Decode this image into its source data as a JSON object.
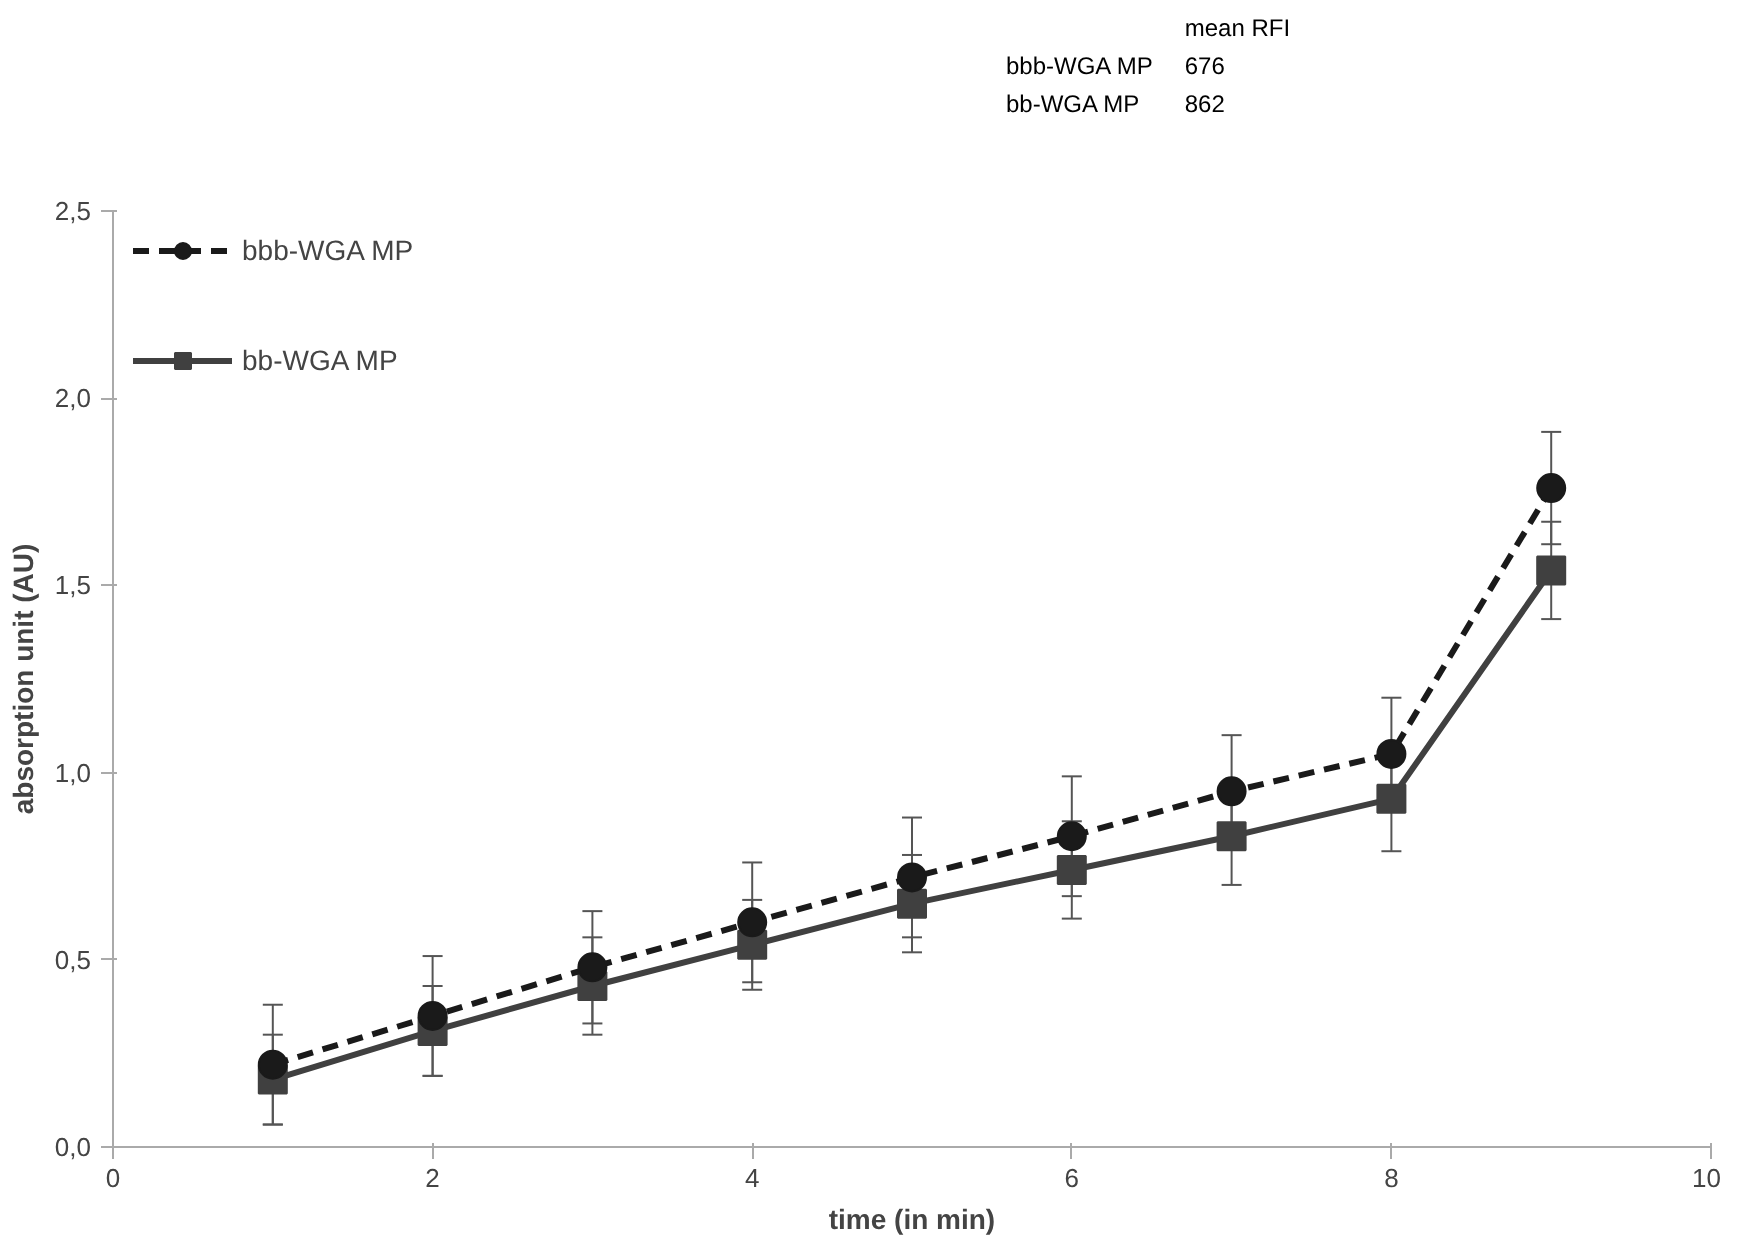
{
  "chart_data": {
    "type": "line",
    "xlabel": "time (in min)",
    "ylabel": "absorption unit (AU)",
    "x": [
      1,
      2,
      3,
      4,
      5,
      6,
      7,
      8,
      9
    ],
    "series": [
      {
        "name": "bbb-WGA MP",
        "color": "#1a1a1a",
        "marker": "circle",
        "line_style": "dashed",
        "values": [
          0.22,
          0.35,
          0.48,
          0.6,
          0.72,
          0.83,
          0.95,
          1.05,
          1.76
        ],
        "errors": [
          0.16,
          0.16,
          0.15,
          0.16,
          0.16,
          0.16,
          0.15,
          0.15,
          0.15
        ]
      },
      {
        "name": "bb-WGA MP",
        "color": "#404040",
        "marker": "square",
        "line_style": "solid",
        "values": [
          0.18,
          0.31,
          0.43,
          0.54,
          0.65,
          0.74,
          0.83,
          0.93,
          1.54
        ],
        "errors": [
          0.12,
          0.12,
          0.13,
          0.12,
          0.13,
          0.13,
          0.13,
          0.14,
          0.13
        ]
      }
    ],
    "xlim": [
      0,
      10
    ],
    "xticks": [
      0,
      2,
      4,
      6,
      8,
      10
    ],
    "ylim": [
      0,
      2.5
    ],
    "yticks": [
      {
        "value": 0,
        "label": "0,0"
      },
      {
        "value": 0.5,
        "label": "0,5"
      },
      {
        "value": 1,
        "label": "1,0"
      },
      {
        "value": 1.5,
        "label": "1,5"
      },
      {
        "value": 2,
        "label": "2,0"
      },
      {
        "value": 2.5,
        "label": "2,5"
      }
    ],
    "grid": false,
    "legend": "top left",
    "annotations": [
      "mean RFI",
      "bbb-WGA MP",
      "676",
      "bb-WGA MP",
      "862"
    ]
  }
}
